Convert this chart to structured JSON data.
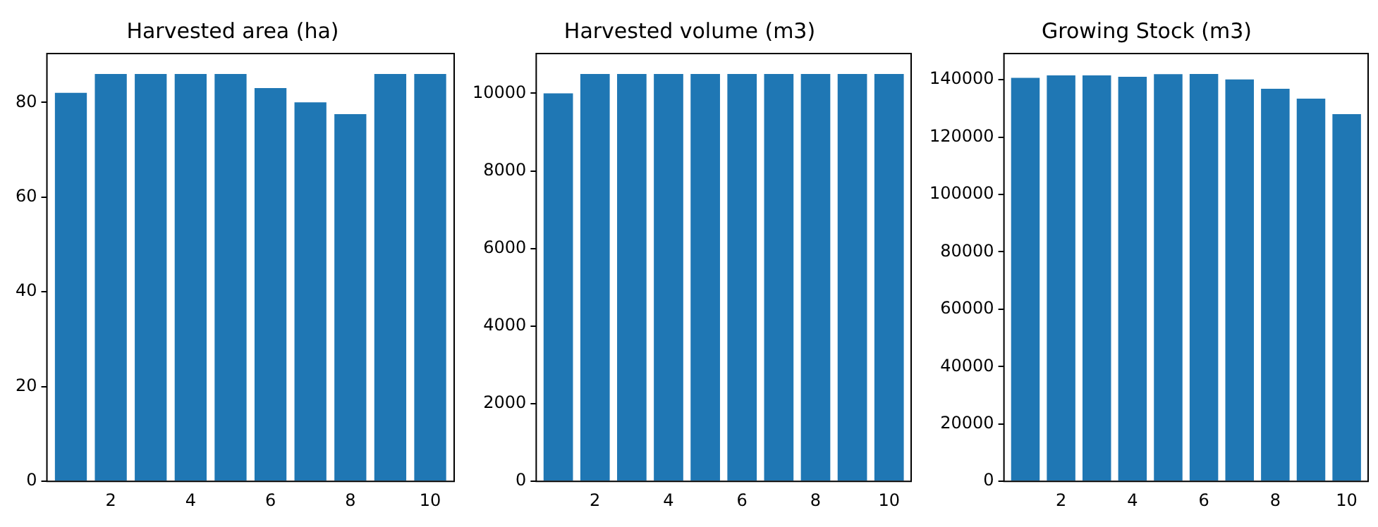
{
  "chart_data": [
    {
      "type": "bar",
      "title": "Harvested area (ha)",
      "x": [
        1,
        2,
        3,
        4,
        5,
        6,
        7,
        8,
        9,
        10
      ],
      "values": [
        82,
        86,
        86,
        86,
        86,
        83,
        80,
        77.5,
        86,
        86
      ],
      "color": "#1f77b4",
      "xlim": [
        0.4,
        10.6
      ],
      "xticks": [
        2,
        4,
        6,
        8,
        10
      ],
      "ylim": [
        0,
        90.3
      ],
      "yticks": [
        0,
        20,
        40,
        60,
        80
      ],
      "grid": false
    },
    {
      "type": "bar",
      "title": "Harvested volume (m3)",
      "x": [
        1,
        2,
        3,
        4,
        5,
        6,
        7,
        8,
        9,
        10
      ],
      "values": [
        10000,
        10500,
        10500,
        10500,
        10500,
        10500,
        10500,
        10500,
        10500,
        10500
      ],
      "color": "#1f77b4",
      "xlim": [
        0.4,
        10.6
      ],
      "xticks": [
        2,
        4,
        6,
        8,
        10
      ],
      "ylim": [
        0,
        11025
      ],
      "yticks": [
        0,
        2000,
        4000,
        6000,
        8000,
        10000
      ],
      "grid": false
    },
    {
      "type": "bar",
      "title": "Growing Stock (m3)",
      "x": [
        1,
        2,
        3,
        4,
        5,
        6,
        7,
        8,
        9,
        10
      ],
      "values": [
        140600,
        141500,
        141500,
        141000,
        141900,
        142000,
        140100,
        136800,
        133400,
        128000
      ],
      "color": "#1f77b4",
      "xlim": [
        0.4,
        10.6
      ],
      "xticks": [
        2,
        4,
        6,
        8,
        10
      ],
      "ylim": [
        0,
        149100
      ],
      "yticks": [
        0,
        20000,
        40000,
        60000,
        80000,
        100000,
        120000,
        140000
      ],
      "grid": false
    }
  ]
}
